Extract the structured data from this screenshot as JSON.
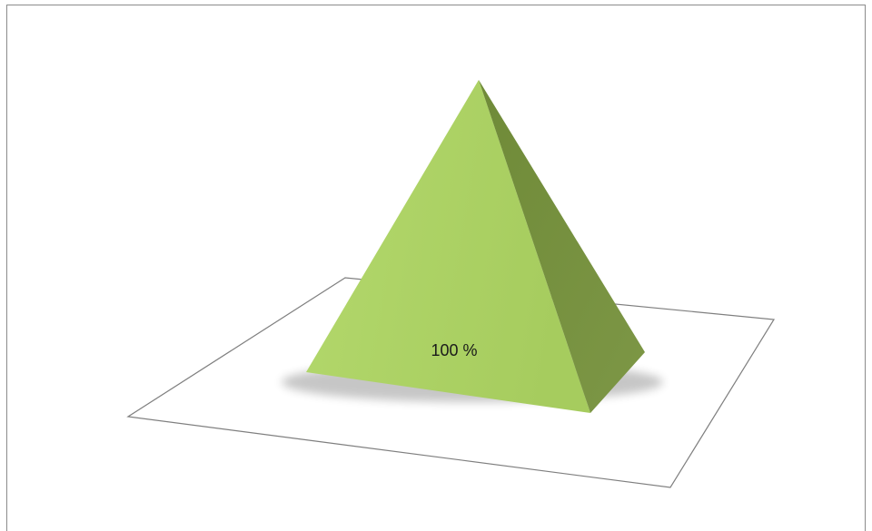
{
  "chart_data": {
    "type": "pyramid",
    "categories": [
      ""
    ],
    "values": [
      100
    ],
    "data_labels": [
      "100 %"
    ],
    "grid": false,
    "legend": "none",
    "colors": {
      "front_face": "#a9cf62",
      "side_face": "#7a9342",
      "floor_stroke": "#7f7f7f",
      "frame_stroke": "#8c8c8c"
    }
  }
}
